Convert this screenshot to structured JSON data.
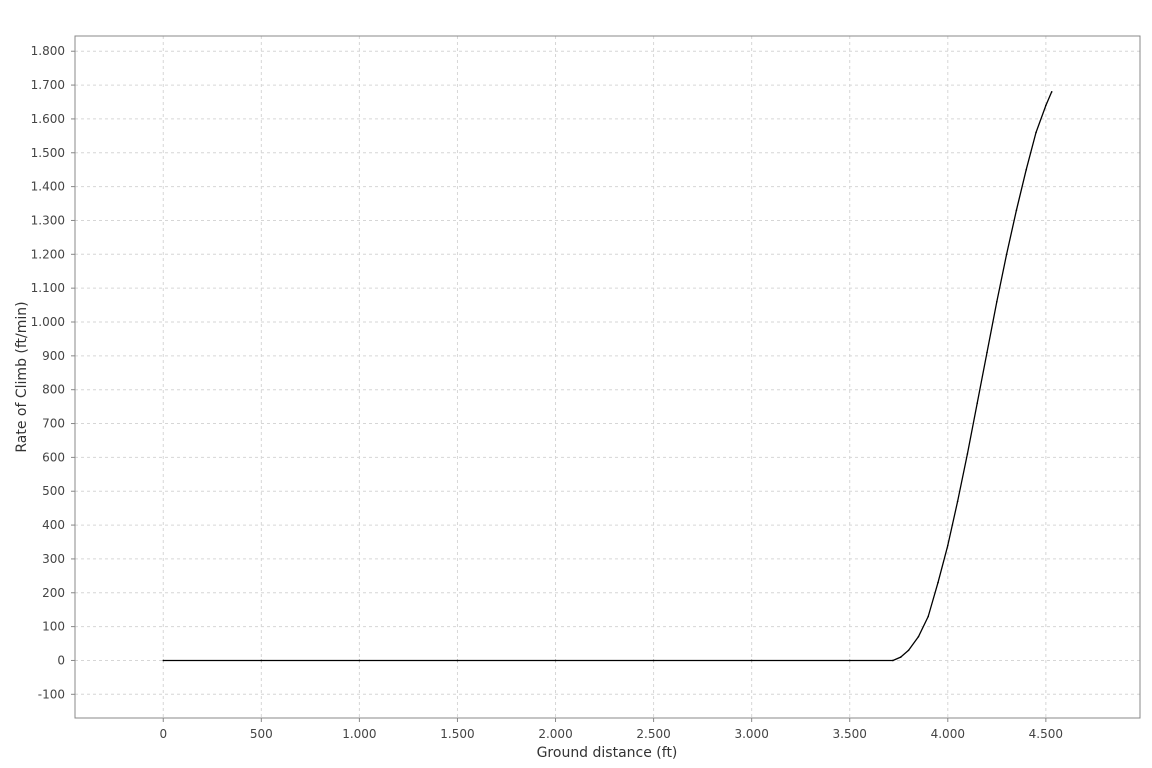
{
  "chart_data": {
    "type": "line",
    "title": "",
    "xlabel": "Ground distance (ft)",
    "ylabel": "Rate of Climb (ft/min)",
    "xlim": [
      -450,
      4980
    ],
    "ylim": [
      -170,
      1845
    ],
    "grid": true,
    "legend": "none",
    "x_ticks": [
      0,
      500,
      1000,
      1500,
      2000,
      2500,
      3000,
      3500,
      4000,
      4500
    ],
    "x_tick_labels": [
      "0",
      "500",
      "1.000",
      "1.500",
      "2.000",
      "2.500",
      "3.000",
      "3.500",
      "4.000",
      "4.500"
    ],
    "y_ticks": [
      -100,
      0,
      100,
      200,
      300,
      400,
      500,
      600,
      700,
      800,
      900,
      1000,
      1100,
      1200,
      1300,
      1400,
      1500,
      1600,
      1700,
      1800
    ],
    "y_tick_labels": [
      "-100",
      "0",
      "100",
      "200",
      "300",
      "400",
      "500",
      "600",
      "700",
      "800",
      "900",
      "1.000",
      "1.100",
      "1.200",
      "1.300",
      "1.400",
      "1.500",
      "1.600",
      "1.700",
      "1.800"
    ],
    "colors": {
      "line": "#000000",
      "grid": "#d6d6d6",
      "frame": "#888888",
      "background": "#ffffff"
    },
    "series": [
      {
        "x": [
          0,
          500,
          1000,
          1500,
          2000,
          2500,
          3000,
          3500,
          3720,
          3760,
          3800,
          3850,
          3900,
          3950,
          4000,
          4050,
          4100,
          4150,
          4200,
          4250,
          4300,
          4350,
          4400,
          4450,
          4500,
          4530
        ],
        "y": [
          0,
          0,
          0,
          0,
          0,
          0,
          0,
          0,
          0,
          10,
          30,
          70,
          130,
          230,
          340,
          470,
          610,
          760,
          910,
          1060,
          1200,
          1330,
          1450,
          1560,
          1640,
          1680
        ]
      }
    ]
  }
}
